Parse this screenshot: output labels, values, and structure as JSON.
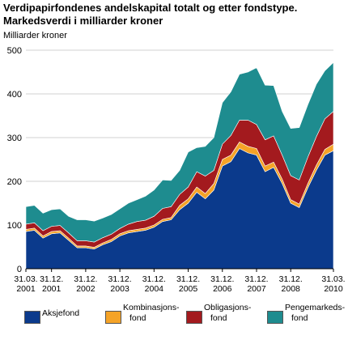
{
  "title_line1": "Verdipapirfondenes andelskapital totalt og etter fondstype.",
  "title_line2": "Markedsverdi i milliarder kroner",
  "chart_data": {
    "type": "area",
    "stacked": true,
    "ylabel": "Milliarder kroner",
    "ylim": [
      0,
      500
    ],
    "yticks": [
      0,
      100,
      200,
      300,
      400,
      500
    ],
    "grid": true,
    "legend_position": "bottom",
    "x_tick_labels": [
      {
        "index": 0,
        "line1": "31.03.",
        "line2": "2001"
      },
      {
        "index": 3,
        "line1": "31.12.",
        "line2": "2001"
      },
      {
        "index": 7,
        "line1": "31.12.",
        "line2": "2002"
      },
      {
        "index": 11,
        "line1": "31.12.",
        "line2": "2003"
      },
      {
        "index": 15,
        "line1": "31.12.",
        "line2": "2004"
      },
      {
        "index": 19,
        "line1": "31.12.",
        "line2": "2005"
      },
      {
        "index": 23,
        "line1": "31.12.",
        "line2": "2006"
      },
      {
        "index": 27,
        "line1": "31.12.",
        "line2": "2007"
      },
      {
        "index": 31,
        "line1": "31.12.",
        "line2": "2008"
      },
      {
        "index": 36,
        "line1": "31.03.",
        "line2": "2010"
      }
    ],
    "series": [
      {
        "name": "Aksjefond",
        "color": "#0b3a8c",
        "values": [
          85,
          88,
          70,
          80,
          82,
          65,
          48,
          48,
          45,
          55,
          62,
          75,
          82,
          85,
          88,
          95,
          108,
          112,
          135,
          150,
          175,
          160,
          180,
          235,
          245,
          275,
          265,
          260,
          222,
          232,
          195,
          150,
          140,
          185,
          225,
          260,
          270
        ]
      },
      {
        "name": "Kombinasjonsfond",
        "color": "#f5a327",
        "values": [
          5,
          5,
          5,
          5,
          5,
          5,
          4,
          4,
          4,
          4,
          5,
          5,
          5,
          5,
          5,
          5,
          5,
          5,
          10,
          10,
          12,
          12,
          15,
          15,
          15,
          15,
          15,
          15,
          13,
          12,
          10,
          8,
          8,
          10,
          12,
          13,
          15
        ]
      },
      {
        "name": "Obligasjonsfond",
        "color": "#a31a1e",
        "values": [
          12,
          12,
          12,
          12,
          12,
          12,
          12,
          12,
          12,
          12,
          12,
          12,
          15,
          18,
          18,
          20,
          25,
          25,
          25,
          27,
          35,
          40,
          30,
          35,
          45,
          50,
          60,
          55,
          60,
          60,
          55,
          55,
          55,
          60,
          65,
          70,
          75
        ]
      },
      {
        "name": "Pengemarkedsfond",
        "color": "#1e8c8f",
        "values": [
          40,
          40,
          40,
          38,
          38,
          38,
          48,
          48,
          48,
          45,
          45,
          45,
          48,
          50,
          55,
          60,
          65,
          60,
          55,
          80,
          55,
          68,
          75,
          95,
          100,
          105,
          110,
          130,
          125,
          115,
          100,
          108,
          120,
          120,
          120,
          110,
          112
        ]
      }
    ]
  },
  "legend": [
    {
      "line1": "Aksjefond",
      "line2": "",
      "color": "#0b3a8c"
    },
    {
      "line1": "Kombinasjons-",
      "line2": "fond",
      "color": "#f5a327"
    },
    {
      "line1": "Obligasjons-",
      "line2": "fond",
      "color": "#a31a1e"
    },
    {
      "line1": "Pengemarkeds-",
      "line2": "fond",
      "color": "#1e8c8f"
    }
  ]
}
